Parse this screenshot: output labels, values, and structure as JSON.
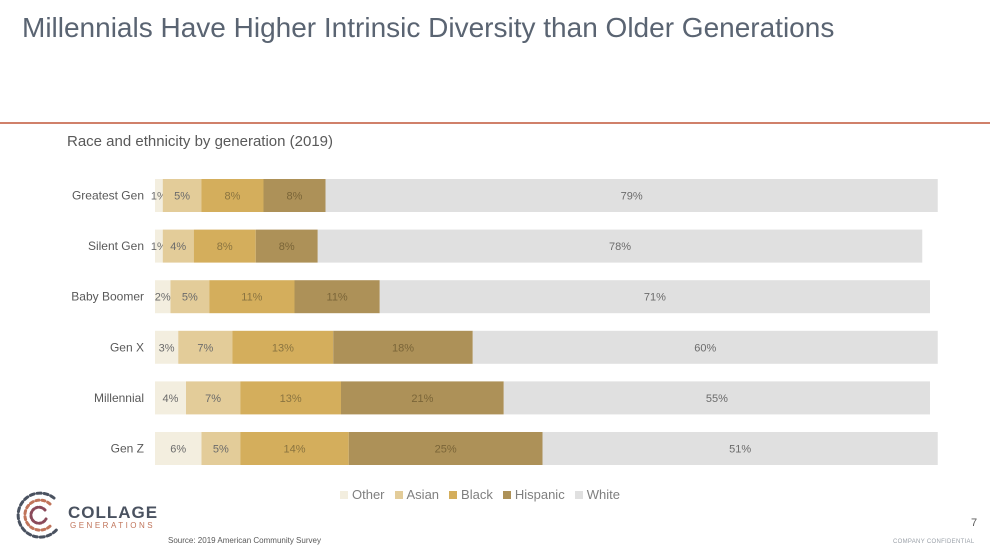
{
  "slide": {
    "title": "Millennials Have Higher Intrinsic Diversity than Older Generations",
    "page_number": "7",
    "confidential": "COMPANY CONFIDENTIAL",
    "source": "Source: 2019 American Community Survey",
    "logo": {
      "name": "COLLAGE",
      "sub": "GENERATIONS"
    }
  },
  "chart_data": {
    "type": "bar",
    "orientation": "horizontal",
    "stacked": true,
    "title": "Race and ethnicity by generation (2019)",
    "categories": [
      "Greatest Gen",
      "Silent Gen",
      "Baby Boomer",
      "Gen X",
      "Millennial",
      "Gen Z"
    ],
    "series": [
      {
        "name": "Other",
        "color": "#f3eedf",
        "values": [
          1,
          1,
          2,
          3,
          4,
          6
        ]
      },
      {
        "name": "Asian",
        "color": "#e3cc99",
        "values": [
          5,
          4,
          5,
          7,
          7,
          5
        ]
      },
      {
        "name": "Black",
        "color": "#d4ae5c",
        "values": [
          8,
          8,
          11,
          13,
          13,
          14
        ]
      },
      {
        "name": "Hispanic",
        "color": "#ad9158",
        "values": [
          8,
          8,
          11,
          18,
          21,
          25
        ]
      },
      {
        "name": "White",
        "color": "#e0e0e0",
        "values": [
          79,
          78,
          71,
          60,
          55,
          51
        ]
      }
    ],
    "value_suffix": "%",
    "xlim": [
      0,
      100
    ],
    "legend_position": "bottom",
    "grid": false
  }
}
